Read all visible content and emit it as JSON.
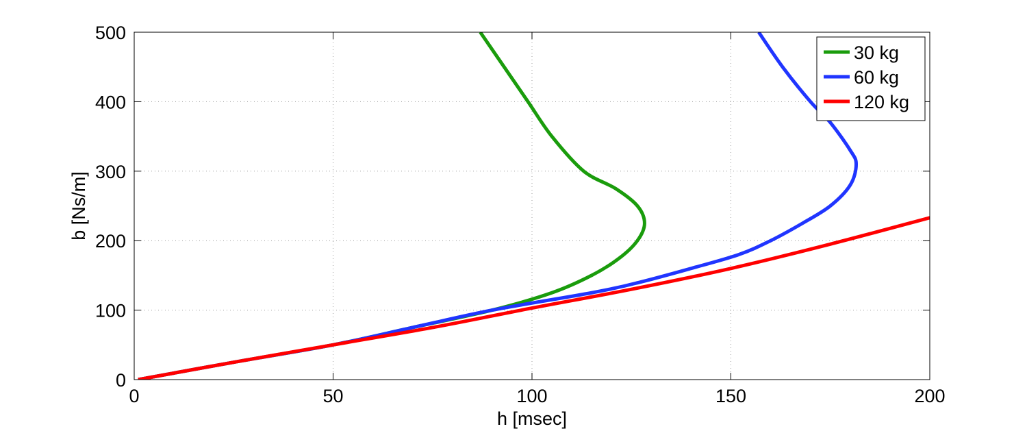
{
  "chart_data": {
    "type": "line",
    "title": "",
    "xlabel": "h [msec]",
    "ylabel": "b [Ns/m]",
    "xlim": [
      0,
      200
    ],
    "ylim": [
      0,
      500
    ],
    "xticks": [
      0,
      50,
      100,
      150,
      200
    ],
    "yticks": [
      0,
      100,
      200,
      300,
      400,
      500
    ],
    "grid": true,
    "legend_position": "top-right",
    "series": [
      {
        "name": "30 kg",
        "color": "#1a9c0c",
        "points": [
          [
            1,
            0
          ],
          [
            25,
            25
          ],
          [
            50,
            50
          ],
          [
            70,
            75
          ],
          [
            90,
            100
          ],
          [
            105,
            125
          ],
          [
            115,
            150
          ],
          [
            122,
            175
          ],
          [
            126.5,
            200
          ],
          [
            128.3,
            225
          ],
          [
            126.5,
            250
          ],
          [
            121,
            275
          ],
          [
            113,
            300
          ],
          [
            105,
            350
          ],
          [
            99,
            400
          ],
          [
            93,
            450
          ],
          [
            87,
            500
          ]
        ]
      },
      {
        "name": "60 kg",
        "color": "#2035ff",
        "points": [
          [
            1,
            0
          ],
          [
            25,
            25
          ],
          [
            50,
            50
          ],
          [
            70,
            75
          ],
          [
            90,
            100
          ],
          [
            115,
            125
          ],
          [
            127,
            140
          ],
          [
            140,
            160
          ],
          [
            152,
            180
          ],
          [
            160,
            200
          ],
          [
            168,
            225
          ],
          [
            175,
            250
          ],
          [
            180,
            280
          ],
          [
            181.5,
            310
          ],
          [
            180,
            330
          ],
          [
            175,
            370
          ],
          [
            170,
            400
          ],
          [
            163,
            450
          ],
          [
            157,
            500
          ]
        ]
      },
      {
        "name": "120 kg",
        "color": "#ff0000",
        "points": [
          [
            1,
            0
          ],
          [
            25,
            25
          ],
          [
            50,
            50
          ],
          [
            75,
            75
          ],
          [
            100,
            103
          ],
          [
            125,
            130
          ],
          [
            150,
            160
          ],
          [
            175,
            195
          ],
          [
            200,
            233
          ]
        ]
      }
    ]
  }
}
